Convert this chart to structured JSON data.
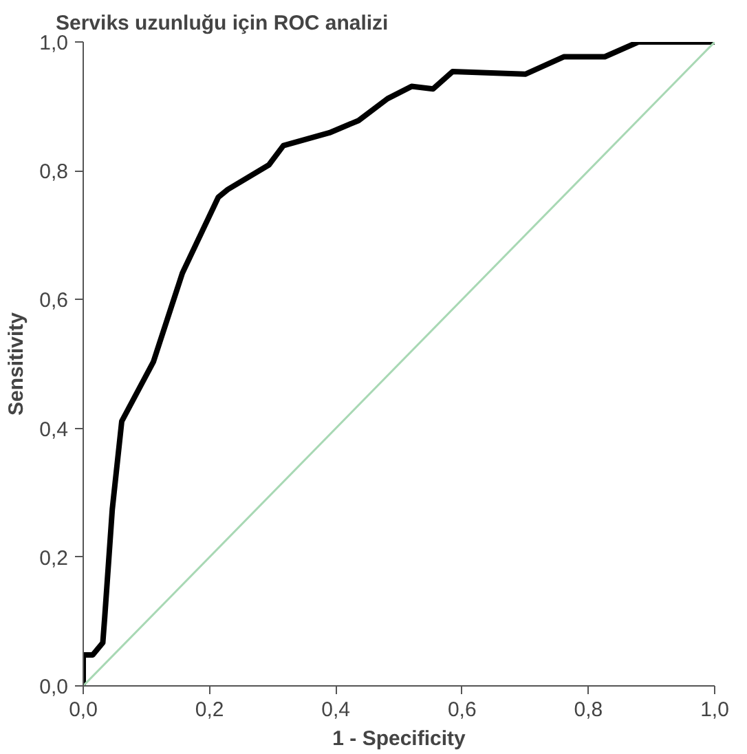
{
  "chart_data": {
    "type": "line",
    "title": "Serviks uzunluğu için ROC analizi",
    "xlabel": "1 - Specificity",
    "ylabel": "Sensitivity",
    "xlim": [
      0,
      1
    ],
    "ylim": [
      0,
      1
    ],
    "xticks": [
      {
        "value": 0,
        "label": "0,0"
      },
      {
        "value": 0.2,
        "label": "0,2"
      },
      {
        "value": 0.4,
        "label": "0,4"
      },
      {
        "value": 0.6,
        "label": "0,6"
      },
      {
        "value": 0.8,
        "label": "0,8"
      },
      {
        "value": 1,
        "label": "1,0"
      }
    ],
    "yticks": [
      {
        "value": 0,
        "label": "0,0"
      },
      {
        "value": 0.2,
        "label": "0,2"
      },
      {
        "value": 0.4,
        "label": "0,4"
      },
      {
        "value": 0.6,
        "label": "0,6"
      },
      {
        "value": 0.8,
        "label": "0,8"
      },
      {
        "value": 1,
        "label": "1,0"
      }
    ],
    "grid": false,
    "line_style": "solid",
    "series": [
      {
        "color": "#000000",
        "x": [
          0,
          0,
          0.015,
          0.031,
          0.034,
          0.046,
          0.061,
          0.111,
          0.157,
          0.214,
          0.229,
          0.294,
          0.317,
          0.39,
          0.436,
          0.482,
          0.52,
          0.554,
          0.585,
          0.7,
          0.761,
          0.826,
          0.879,
          1.0
        ],
        "values": [
          0,
          0.048,
          0.048,
          0.067,
          0.106,
          0.274,
          0.411,
          0.503,
          0.641,
          0.759,
          0.771,
          0.809,
          0.839,
          0.859,
          0.878,
          0.912,
          0.931,
          0.927,
          0.954,
          0.95,
          0.977,
          0.977,
          1.0,
          1.0
        ]
      },
      {
        "color": "#a8d8b4",
        "x": [
          0,
          1
        ],
        "values": [
          0,
          1
        ]
      }
    ]
  }
}
